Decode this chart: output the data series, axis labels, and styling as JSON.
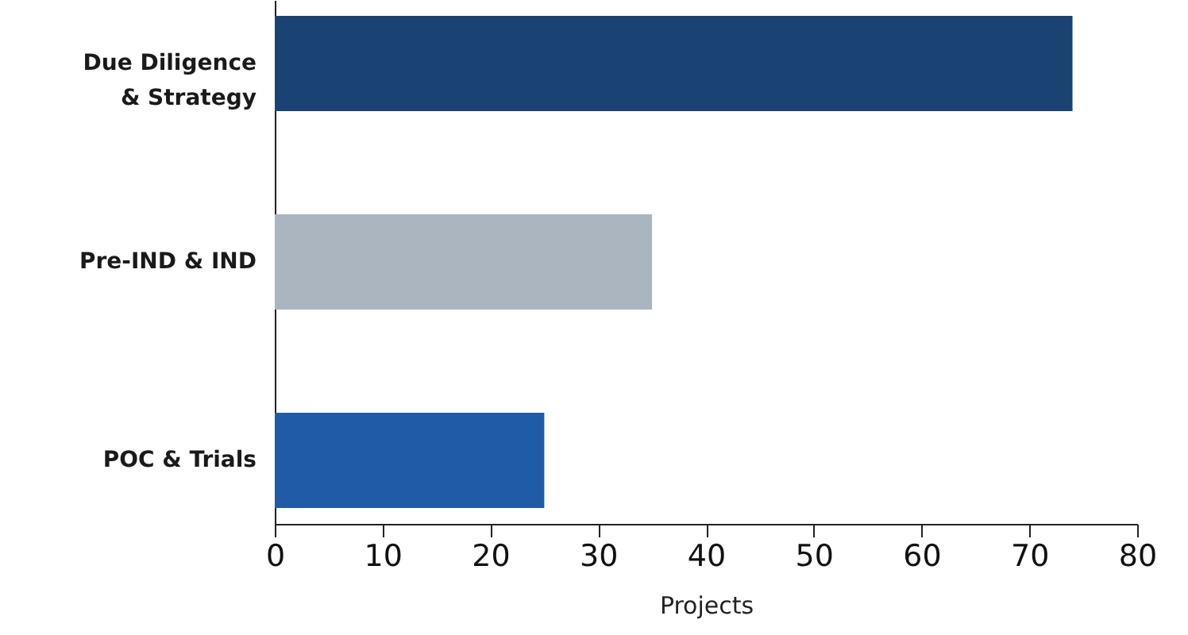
{
  "chart_data": {
    "type": "bar",
    "orientation": "horizontal",
    "categories": [
      "Due Diligence & Strategy",
      "Pre-IND & IND",
      "POC & Trials"
    ],
    "values": [
      74,
      35,
      25
    ],
    "colors": [
      "#1a4373",
      "#aab5bf",
      "#1f5ba6"
    ],
    "xlabel": "Projects",
    "xlim": [
      0,
      80
    ],
    "xticks": [
      0,
      10,
      20,
      30,
      40,
      50,
      60,
      70,
      80
    ],
    "grid": false
  }
}
